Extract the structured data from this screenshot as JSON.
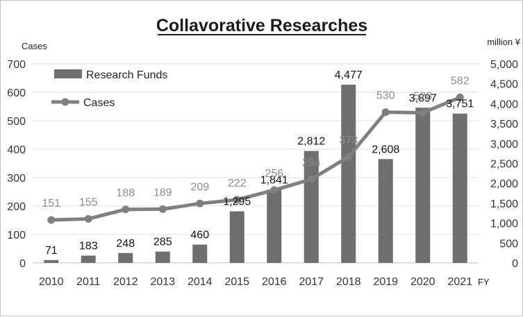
{
  "chart_data": {
    "type": "bar+line",
    "title": "Collavorative Researches",
    "xlabel": "FY",
    "categories": [
      "2010",
      "2011",
      "2012",
      "2013",
      "2014",
      "2015",
      "2016",
      "2017",
      "2018",
      "2019",
      "2020",
      "2021"
    ],
    "y_left": {
      "unit": "Cases",
      "range": [
        0,
        700
      ],
      "ticks": [
        "0",
        "100",
        "200",
        "300",
        "400",
        "500",
        "600",
        "700"
      ]
    },
    "y_right": {
      "unit": "million ¥",
      "range": [
        0,
        5000
      ],
      "ticks": [
        "0",
        "500",
        "1,000",
        "1,500",
        "2,000",
        "2,500",
        "3,000",
        "3,500",
        "4,000",
        "4,500",
        "5,000"
      ]
    },
    "series": [
      {
        "name": "Research Funds",
        "type": "bar",
        "axis": "right",
        "color": "#6e6e6e",
        "values": [
          71,
          183,
          248,
          285,
          460,
          1295,
          1841,
          2812,
          4477,
          2608,
          3897,
          3751
        ],
        "labels": [
          "71",
          "183",
          "248",
          "285",
          "460",
          "1,295",
          "1,841",
          "2,812",
          "4,477",
          "2,608",
          "3,897",
          "3,751"
        ]
      },
      {
        "name": "Cases",
        "type": "line",
        "axis": "left",
        "color": "#7f7f7f",
        "values": [
          151,
          155,
          188,
          189,
          209,
          222,
          256,
          294,
          373,
          530,
          528,
          582
        ],
        "labels": [
          "151",
          "155",
          "188",
          "189",
          "209",
          "222",
          "256",
          "294",
          "373",
          "530",
          "528",
          "582"
        ]
      }
    ],
    "legend": {
      "placement": "top-left",
      "entries": [
        "Research Funds",
        "Cases"
      ]
    },
    "grid": true
  }
}
